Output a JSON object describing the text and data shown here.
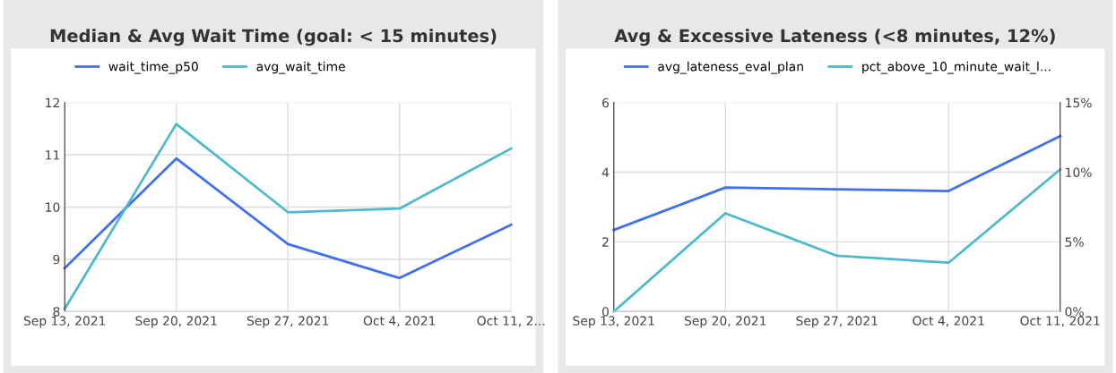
{
  "chart_data": [
    {
      "type": "line",
      "title": "Median & Avg Wait Time (goal: < 15 minutes)",
      "categories": [
        "Sep 13, 2021",
        "Sep 20, 2021",
        "Sep 27, 2021",
        "Oct 4, 2021",
        "Oct 11, 2..."
      ],
      "series": [
        {
          "name": "wait_time_p50",
          "color": "#4170ee",
          "values": [
            8.83,
            10.93,
            9.29,
            8.64,
            9.66
          ]
        },
        {
          "name": "avg_wait_time",
          "color": "#4fb9cc",
          "values": [
            8.05,
            11.59,
            9.9,
            9.97,
            11.12
          ]
        }
      ],
      "ylim": [
        8,
        12
      ],
      "yticks": [
        8,
        9,
        10,
        11,
        12
      ],
      "grid": true,
      "legend": "top",
      "marker": "none",
      "line_style": "solid"
    },
    {
      "type": "line",
      "title": "Avg & Excessive Lateness (<8 minutes, 12%)",
      "categories": [
        "Sep 13, 2021",
        "Sep 20, 2021",
        "Sep 27, 2021",
        "Oct 4, 2021",
        "Oct 11, 2021"
      ],
      "series": [
        {
          "name": "avg_lateness_eval_plan",
          "color": "#4170ee",
          "values": [
            2.34,
            3.56,
            3.51,
            3.46,
            5.04
          ]
        },
        {
          "name": "pct_above_10_minute_wait_l...",
          "color": "#4fb9cc",
          "axis": "y2",
          "values": [
            0,
            7.05,
            4.0,
            3.5,
            10.2
          ]
        }
      ],
      "ylim": [
        0,
        6
      ],
      "yticks": [
        0,
        2,
        4,
        6
      ],
      "y2lim": [
        0,
        15
      ],
      "y2ticks": [
        {
          "value": 0,
          "label": "0%"
        },
        {
          "value": 5,
          "label": "5%"
        },
        {
          "value": 10,
          "label": "10%"
        },
        {
          "value": 15,
          "label": "15%"
        }
      ],
      "grid": true,
      "legend": "top",
      "marker": "none",
      "line_style": "solid"
    }
  ]
}
